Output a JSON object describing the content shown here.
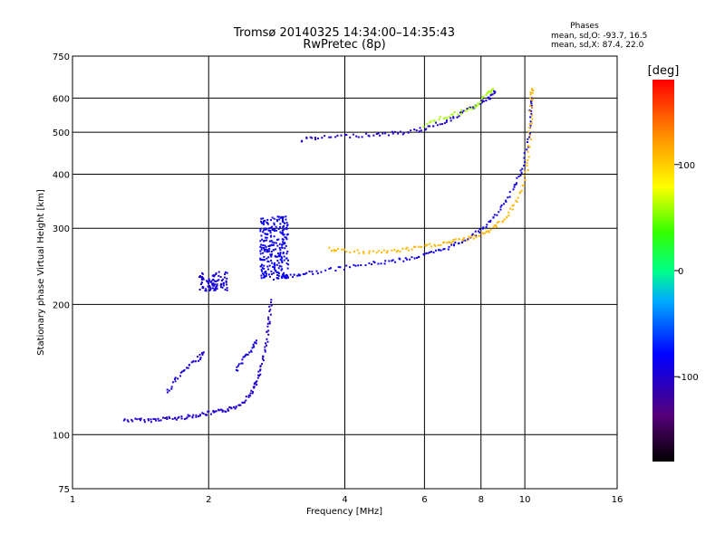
{
  "chart_data": {
    "type": "scatter",
    "title": "Tromsø 20140325 14:34:00–14:35:43",
    "subtitle": "RwPretec (8p)",
    "stats": {
      "heading": "Phases",
      "line_o": "mean, sd,O: -93.7, 16.5",
      "line_x": "mean, sd,X: 87.4, 22.0"
    },
    "xlabel": "Frequency [MHz]",
    "ylabel": "Stationary phase Virtual Height [km]",
    "x_scale": "log",
    "y_scale": "log",
    "xlim": [
      1,
      16
    ],
    "ylim": [
      75,
      750
    ],
    "x_ticks": [
      1,
      2,
      4,
      6,
      8,
      10,
      16
    ],
    "x_tick_labels": [
      "1",
      "2",
      "4",
      "6",
      "8",
      "10",
      "16"
    ],
    "y_ticks": [
      75,
      100,
      200,
      300,
      400,
      500,
      600,
      750
    ],
    "y_tick_labels": [
      "75",
      "100",
      "200",
      "300",
      "400",
      "500",
      "600",
      "750"
    ],
    "grid": true,
    "colorbar": {
      "label": "[deg]",
      "range": [
        -180,
        180
      ],
      "tick_values": [
        100,
        0,
        -100
      ],
      "tick_labels": [
        "100",
        "0",
        "-100"
      ]
    },
    "traces": [
      {
        "phase": -100,
        "points": [
          [
            1.3,
            108
          ],
          [
            1.4,
            108
          ],
          [
            1.5,
            108
          ],
          [
            1.6,
            109
          ],
          [
            1.7,
            109
          ],
          [
            1.8,
            110
          ],
          [
            1.9,
            111
          ],
          [
            2.0,
            112
          ],
          [
            2.1,
            113
          ],
          [
            2.2,
            114
          ],
          [
            2.3,
            116
          ],
          [
            2.4,
            120
          ],
          [
            2.5,
            126
          ],
          [
            2.55,
            132
          ],
          [
            2.6,
            140
          ],
          [
            2.65,
            152
          ],
          [
            2.7,
            170
          ],
          [
            2.72,
            185
          ],
          [
            2.75,
            205
          ]
        ]
      },
      {
        "phase": -95,
        "points": [
          [
            1.62,
            125
          ],
          [
            1.7,
            135
          ],
          [
            1.8,
            143
          ],
          [
            1.9,
            150
          ],
          [
            1.95,
            155
          ]
        ]
      },
      {
        "phase": -90,
        "points": [
          [
            2.3,
            140
          ],
          [
            2.4,
            150
          ],
          [
            2.5,
            158
          ],
          [
            2.55,
            165
          ]
        ]
      },
      {
        "phase": -90,
        "points": [
          [
            2.8,
            228
          ],
          [
            3.0,
            232
          ],
          [
            3.2,
            235
          ],
          [
            3.5,
            238
          ],
          [
            4.0,
            243
          ],
          [
            4.5,
            248
          ],
          [
            5.0,
            251
          ],
          [
            5.5,
            255
          ],
          [
            6.0,
            260
          ],
          [
            6.5,
            266
          ],
          [
            7.0,
            275
          ],
          [
            7.5,
            285
          ],
          [
            8.0,
            297
          ],
          [
            8.5,
            315
          ],
          [
            9.0,
            340
          ],
          [
            9.5,
            375
          ],
          [
            9.9,
            415
          ],
          [
            10.2,
            480
          ],
          [
            10.3,
            560
          ],
          [
            10.35,
            600
          ]
        ]
      },
      {
        "phase": -100,
        "points": [
          [
            3.2,
            480
          ],
          [
            3.5,
            485
          ],
          [
            4.0,
            490
          ],
          [
            4.5,
            493
          ],
          [
            5.0,
            496
          ],
          [
            5.5,
            500
          ],
          [
            6.0,
            510
          ],
          [
            6.5,
            525
          ],
          [
            7.0,
            540
          ],
          [
            7.5,
            565
          ],
          [
            8.0,
            585
          ],
          [
            8.3,
            600
          ],
          [
            8.6,
            620
          ]
        ]
      },
      {
        "phase": 110,
        "points": [
          [
            3.7,
            268
          ],
          [
            4.0,
            266
          ],
          [
            4.5,
            264
          ],
          [
            5.0,
            265
          ],
          [
            5.5,
            268
          ],
          [
            6.0,
            272
          ],
          [
            6.5,
            276
          ],
          [
            7.0,
            280
          ],
          [
            7.5,
            284
          ],
          [
            8.0,
            290
          ],
          [
            8.5,
            300
          ],
          [
            9.0,
            315
          ],
          [
            9.5,
            340
          ],
          [
            10.0,
            380
          ],
          [
            10.2,
            440
          ],
          [
            10.3,
            520
          ],
          [
            10.35,
            600
          ],
          [
            10.38,
            630
          ]
        ]
      },
      {
        "phase": 60,
        "points": [
          [
            6.0,
            520
          ],
          [
            6.6,
            540
          ],
          [
            7.2,
            555
          ],
          [
            7.8,
            570
          ],
          [
            8.2,
            610
          ],
          [
            8.5,
            630
          ]
        ]
      }
    ],
    "clusters": [
      {
        "phase": -95,
        "x_range": [
          1.9,
          2.2
        ],
        "y_range": [
          215,
          238
        ],
        "count": 90
      },
      {
        "phase": -85,
        "x_range": [
          2.6,
          3.0
        ],
        "y_range": [
          230,
          320
        ],
        "count": 260
      }
    ]
  }
}
